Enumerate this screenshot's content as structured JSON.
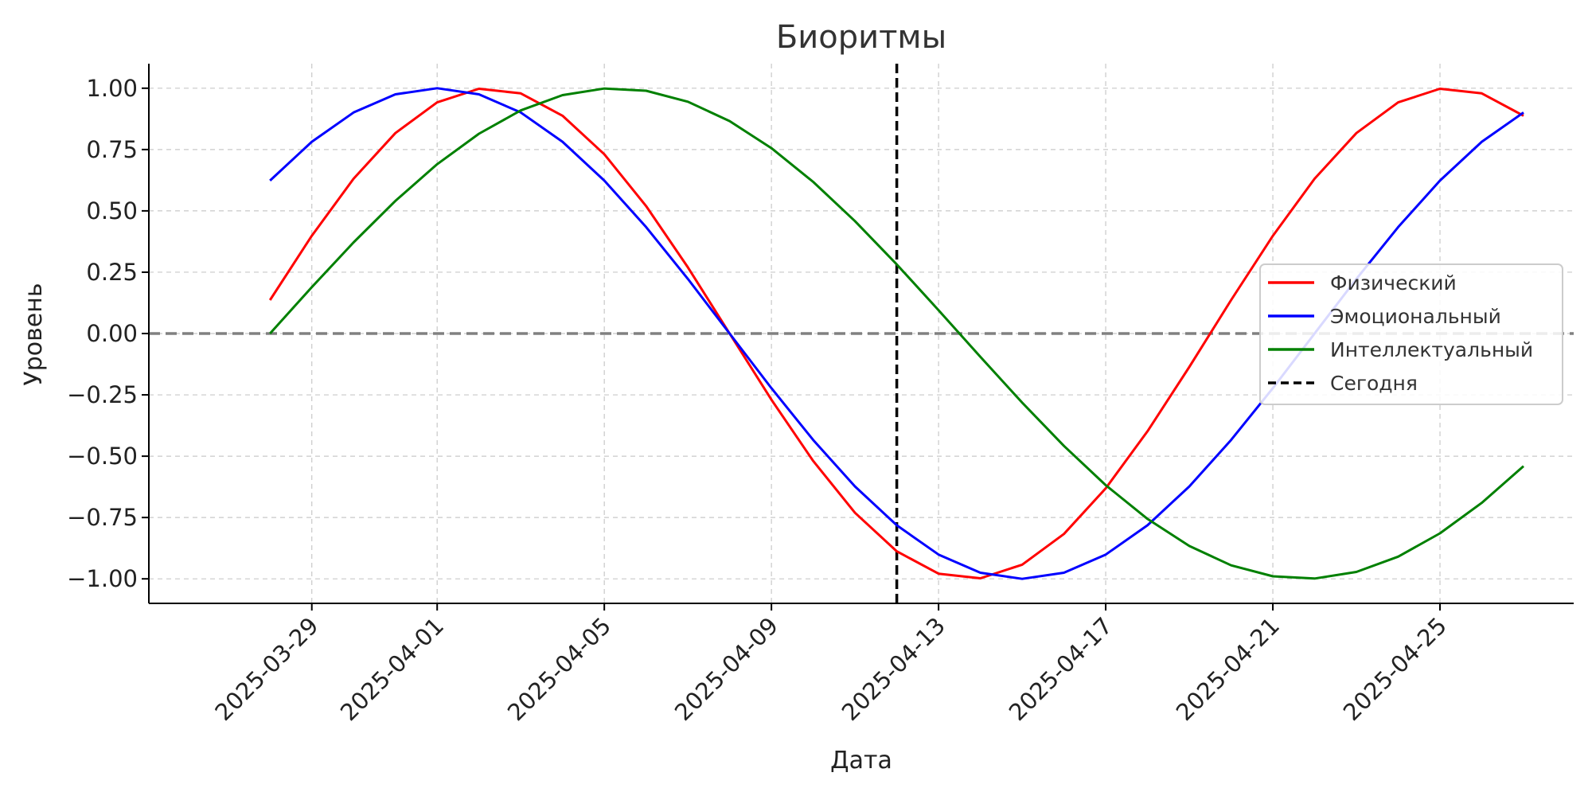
{
  "chart_data": {
    "type": "line",
    "title": "Биоритмы",
    "xlabel": "Дата",
    "ylabel": "Уровень",
    "x_start_day": 0,
    "x_end_day": 30,
    "xlim": [
      -2.9,
      31.2
    ],
    "ylim": [
      -1.1,
      1.1
    ],
    "x_ticks": [
      {
        "day": 1,
        "label": "2025-03-29"
      },
      {
        "day": 4,
        "label": "2025-04-01"
      },
      {
        "day": 8,
        "label": "2025-04-05"
      },
      {
        "day": 12,
        "label": "2025-04-09"
      },
      {
        "day": 16,
        "label": "2025-04-13"
      },
      {
        "day": 20,
        "label": "2025-04-17"
      },
      {
        "day": 24,
        "label": "2025-04-21"
      },
      {
        "day": 28,
        "label": "2025-04-25"
      }
    ],
    "y_ticks": [
      {
        "value": 1.0,
        "label": "1.00"
      },
      {
        "value": 0.75,
        "label": "0.75"
      },
      {
        "value": 0.5,
        "label": "0.50"
      },
      {
        "value": 0.25,
        "label": "0.25"
      },
      {
        "value": 0.0,
        "label": "0.00"
      },
      {
        "value": -0.25,
        "label": "−0.25"
      },
      {
        "value": -0.5,
        "label": "−0.50"
      },
      {
        "value": -0.75,
        "label": "−0.75"
      },
      {
        "value": -1.0,
        "label": "−1.00"
      }
    ],
    "grid": true,
    "legend_position": "right",
    "today_day": 15,
    "series": [
      {
        "name": "Физический",
        "color": "#ff0000",
        "period": 23,
        "phase": 0.5
      },
      {
        "name": "Эмоциональный",
        "color": "#0000ff",
        "period": 28,
        "phase": 3
      },
      {
        "name": "Интеллектуальный",
        "color": "#008000",
        "period": 33,
        "phase": 0
      }
    ],
    "zero_line": {
      "value": 0,
      "color": "#808080",
      "style": "dashed"
    },
    "today_line": {
      "name": "Сегодня",
      "color": "#000000",
      "style": "dashed"
    }
  }
}
